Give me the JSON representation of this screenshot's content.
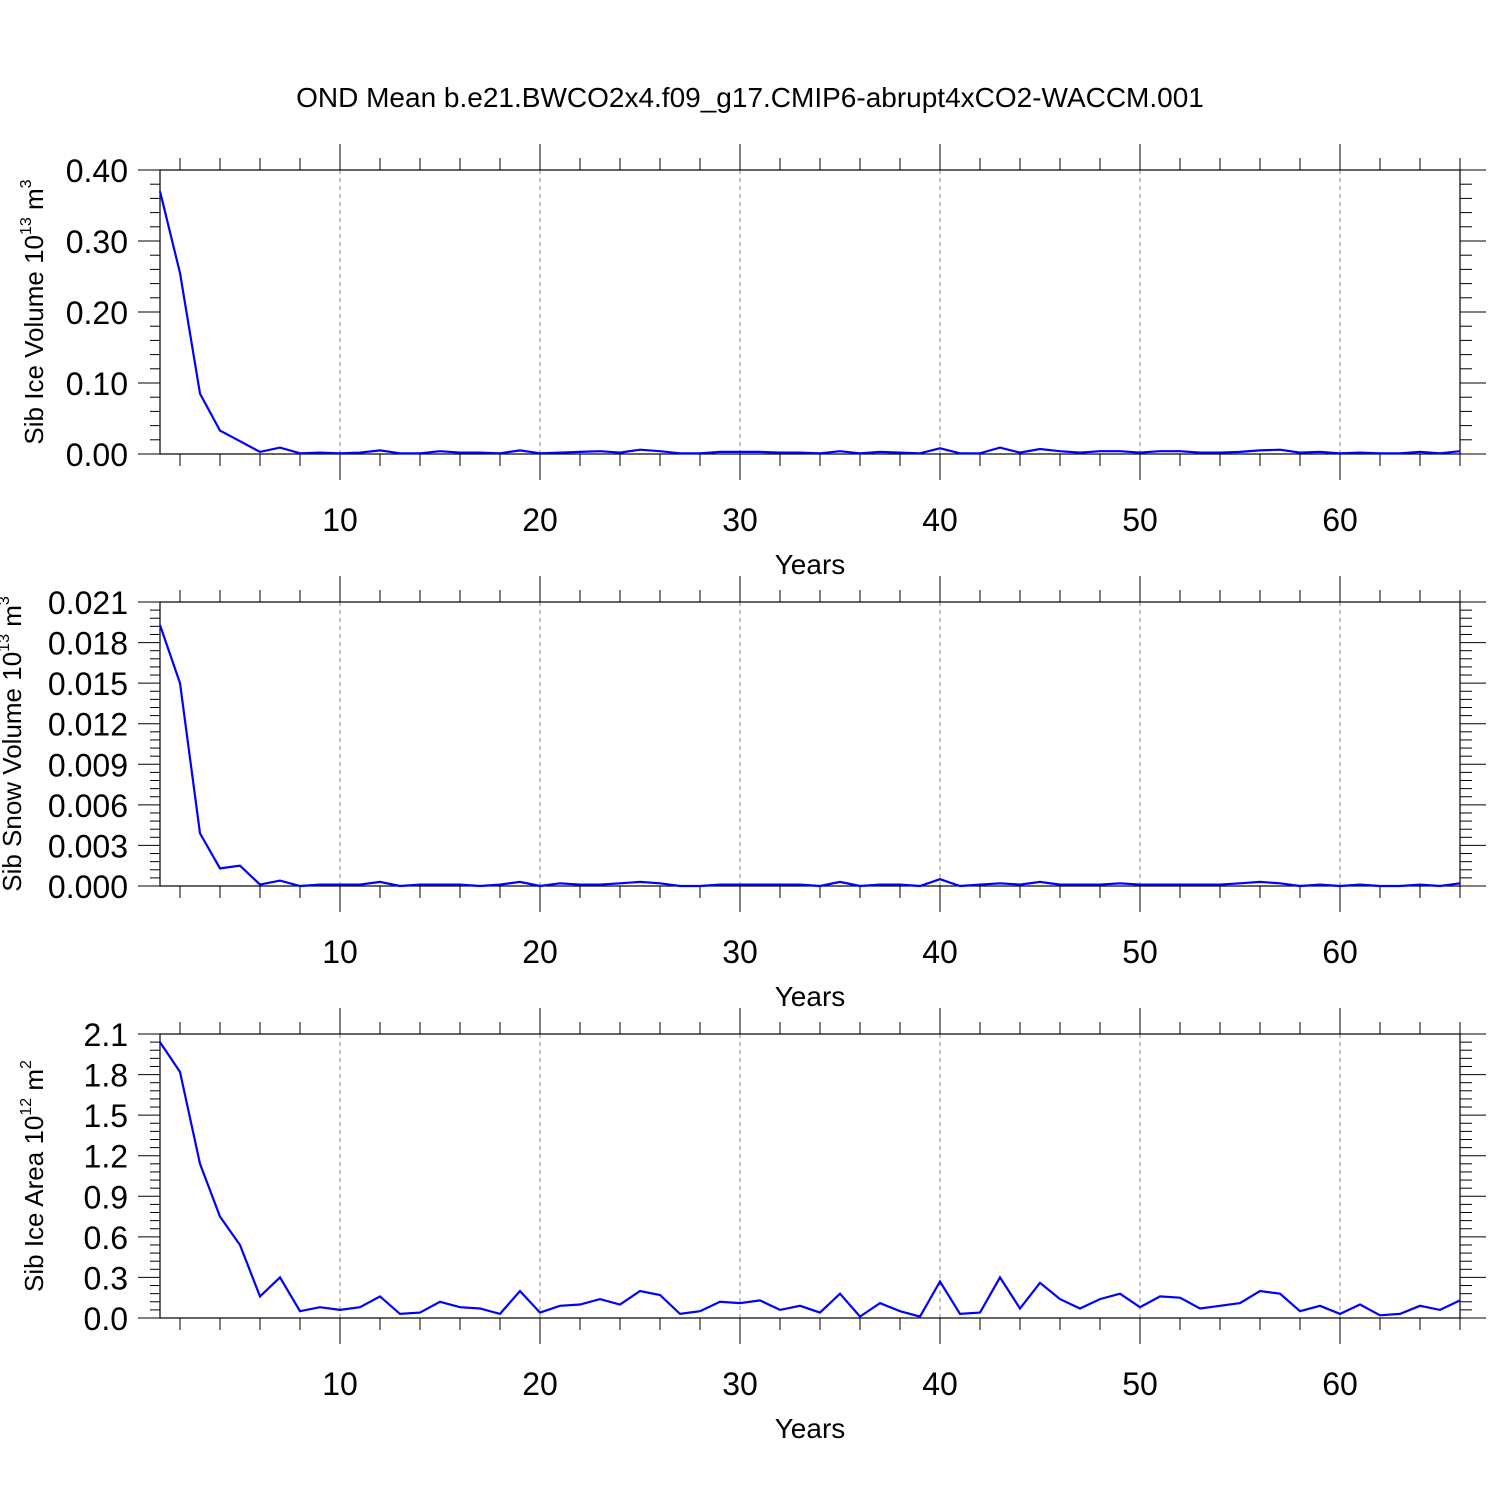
{
  "title": "OND Mean b.e21.BWCO2x4.f09_g17.CMIP6-abrupt4xCO2-WACCM.001",
  "line_color": "#0000ff",
  "chart_data": [
    {
      "type": "line",
      "ylabel": "Sib Ice Volume 10",
      "ylabel_exp": "13",
      "ylabel_unit": "m",
      "ylabel_unit_exp": "3",
      "xlabel": "Years",
      "xlim": [
        1,
        66
      ],
      "ylim": [
        0,
        0.4
      ],
      "x_ticks": [
        10,
        20,
        30,
        40,
        50,
        60
      ],
      "y_ticks": [
        "0.00",
        "0.10",
        "0.20",
        "0.30",
        "0.40"
      ],
      "grid": "vertical dashed at major x ticks",
      "series": [
        {
          "x": [
            1,
            2,
            3,
            4,
            5,
            6,
            7,
            8,
            9,
            10,
            11,
            12,
            13,
            14,
            15,
            16,
            17,
            18,
            19,
            20,
            21,
            22,
            23,
            24,
            25,
            26,
            27,
            28,
            29,
            30,
            31,
            32,
            33,
            34,
            35,
            36,
            37,
            38,
            39,
            40,
            41,
            42,
            43,
            44,
            45,
            46,
            47,
            48,
            49,
            50,
            51,
            52,
            53,
            54,
            55,
            56,
            57,
            58,
            59,
            60,
            61,
            62,
            63,
            64,
            65,
            66
          ],
          "values": [
            0.37,
            0.255,
            0.085,
            0.033,
            0.018,
            0.003,
            0.009,
            0.001,
            0.002,
            0.001,
            0.002,
            0.005,
            0.001,
            0.001,
            0.004,
            0.002,
            0.002,
            0.001,
            0.005,
            0.001,
            0.002,
            0.003,
            0.004,
            0.002,
            0.006,
            0.004,
            0.001,
            0.001,
            0.003,
            0.003,
            0.003,
            0.002,
            0.002,
            0.001,
            0.004,
            0.001,
            0.003,
            0.002,
            0.001,
            0.008,
            0.001,
            0.001,
            0.009,
            0.002,
            0.007,
            0.004,
            0.002,
            0.004,
            0.004,
            0.002,
            0.004,
            0.004,
            0.002,
            0.002,
            0.003,
            0.005,
            0.006,
            0.002,
            0.003,
            0.001,
            0.002,
            0.001,
            0.001,
            0.003,
            0.001,
            0.004
          ]
        }
      ]
    },
    {
      "type": "line",
      "ylabel": "Sib Snow Volume 10",
      "ylabel_exp": "13",
      "ylabel_unit": "m",
      "ylabel_unit_exp": "3",
      "xlabel": "Years",
      "xlim": [
        1,
        66
      ],
      "ylim": [
        0,
        0.021
      ],
      "x_ticks": [
        10,
        20,
        30,
        40,
        50,
        60
      ],
      "y_ticks": [
        "0.000",
        "0.003",
        "0.006",
        "0.009",
        "0.012",
        "0.015",
        "0.018",
        "0.021"
      ],
      "grid": "vertical dashed at major x ticks",
      "series": [
        {
          "x": [
            1,
            2,
            3,
            4,
            5,
            6,
            7,
            8,
            9,
            10,
            11,
            12,
            13,
            14,
            15,
            16,
            17,
            18,
            19,
            20,
            21,
            22,
            23,
            24,
            25,
            26,
            27,
            28,
            29,
            30,
            31,
            32,
            33,
            34,
            35,
            36,
            37,
            38,
            39,
            40,
            41,
            42,
            43,
            44,
            45,
            46,
            47,
            48,
            49,
            50,
            51,
            52,
            53,
            54,
            55,
            56,
            57,
            58,
            59,
            60,
            61,
            62,
            63,
            64,
            65,
            66
          ],
          "values": [
            0.0193,
            0.015,
            0.0039,
            0.0013,
            0.0015,
            0.0001,
            0.0004,
            0.0,
            0.0001,
            0.0001,
            0.0001,
            0.0003,
            0.0,
            0.0001,
            0.0001,
            0.0001,
            0.0,
            0.0001,
            0.0003,
            0.0,
            0.0002,
            0.0001,
            0.0001,
            0.0002,
            0.0003,
            0.0002,
            0.0,
            0.0,
            0.0001,
            0.0001,
            0.0001,
            0.0001,
            0.0001,
            0.0,
            0.0003,
            0.0,
            0.0001,
            0.0001,
            0.0,
            0.0005,
            0.0,
            0.0001,
            0.0002,
            0.0001,
            0.0003,
            0.0001,
            0.0001,
            0.0001,
            0.0002,
            0.0001,
            0.0001,
            0.0001,
            0.0001,
            0.0001,
            0.0002,
            0.0003,
            0.0002,
            0.0,
            0.0001,
            0.0,
            0.0001,
            0.0,
            0.0,
            0.0001,
            0.0,
            0.0002
          ]
        }
      ]
    },
    {
      "type": "line",
      "ylabel": "Sib Ice Area 10",
      "ylabel_exp": "12",
      "ylabel_unit": "m",
      "ylabel_unit_exp": "2",
      "xlabel": "Years",
      "xlim": [
        1,
        66
      ],
      "ylim": [
        0,
        2.1
      ],
      "x_ticks": [
        10,
        20,
        30,
        40,
        50,
        60
      ],
      "y_ticks": [
        "0.0",
        "0.3",
        "0.6",
        "0.9",
        "1.2",
        "1.5",
        "1.8",
        "2.1"
      ],
      "grid": "vertical dashed at major x ticks",
      "series": [
        {
          "x": [
            1,
            2,
            3,
            4,
            5,
            6,
            7,
            8,
            9,
            10,
            11,
            12,
            13,
            14,
            15,
            16,
            17,
            18,
            19,
            20,
            21,
            22,
            23,
            24,
            25,
            26,
            27,
            28,
            29,
            30,
            31,
            32,
            33,
            34,
            35,
            36,
            37,
            38,
            39,
            40,
            41,
            42,
            43,
            44,
            45,
            46,
            47,
            48,
            49,
            50,
            51,
            52,
            53,
            54,
            55,
            56,
            57,
            58,
            59,
            60,
            61,
            62,
            63,
            64,
            65,
            66
          ],
          "values": [
            2.04,
            1.82,
            1.14,
            0.75,
            0.54,
            0.16,
            0.3,
            0.05,
            0.08,
            0.06,
            0.08,
            0.16,
            0.03,
            0.04,
            0.12,
            0.08,
            0.07,
            0.03,
            0.2,
            0.04,
            0.09,
            0.1,
            0.14,
            0.1,
            0.2,
            0.17,
            0.03,
            0.05,
            0.12,
            0.11,
            0.13,
            0.06,
            0.09,
            0.04,
            0.18,
            0.01,
            0.11,
            0.05,
            0.01,
            0.27,
            0.03,
            0.04,
            0.3,
            0.07,
            0.26,
            0.14,
            0.07,
            0.14,
            0.18,
            0.08,
            0.16,
            0.15,
            0.07,
            0.09,
            0.11,
            0.2,
            0.18,
            0.05,
            0.09,
            0.03,
            0.1,
            0.02,
            0.03,
            0.09,
            0.06,
            0.13
          ]
        }
      ]
    }
  ]
}
